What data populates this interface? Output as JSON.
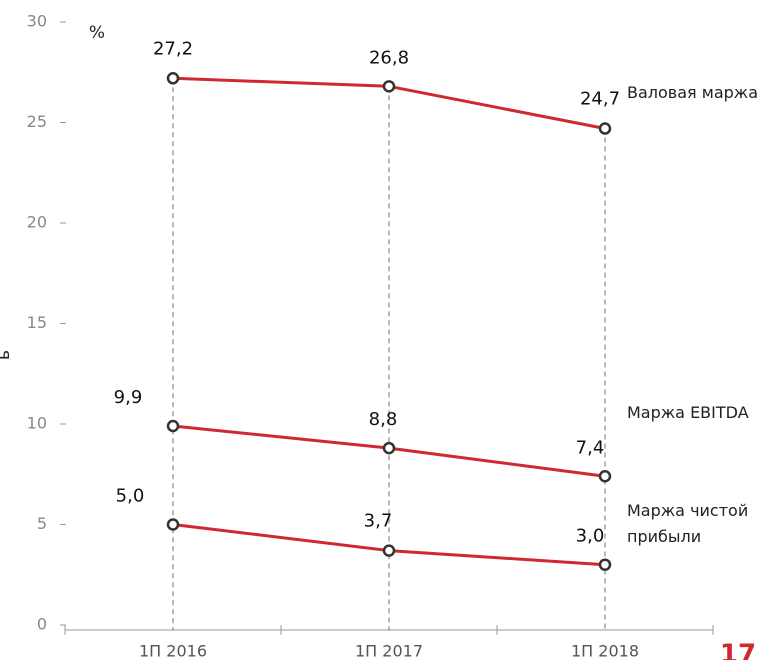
{
  "chart_data": {
    "type": "line",
    "unit_label": "%",
    "ylabel": "ь",
    "page_number": "17",
    "categories": [
      "1П 2016",
      "1П 2017",
      "1П 2018"
    ],
    "series": [
      {
        "name": "Валовая маржа",
        "color": "#d0282f",
        "values": [
          27.2,
          26.8,
          24.7
        ],
        "value_labels": [
          "27,2",
          "26,8",
          "24,7"
        ]
      },
      {
        "name": "Маржа EBITDA",
        "color": "#d0282f",
        "values": [
          9.9,
          8.8,
          7.4
        ],
        "value_labels": [
          "9,9",
          "8,8",
          "7,4"
        ]
      },
      {
        "name": "Маржа чистой прибыли",
        "color": "#d0282f",
        "values": [
          5.0,
          3.7,
          3.0
        ],
        "value_labels": [
          "5,0",
          "3,7",
          "3,0"
        ]
      }
    ],
    "ylim": [
      0,
      30
    ],
    "yticks": [
      0,
      5,
      10,
      15,
      20,
      25,
      30
    ]
  }
}
